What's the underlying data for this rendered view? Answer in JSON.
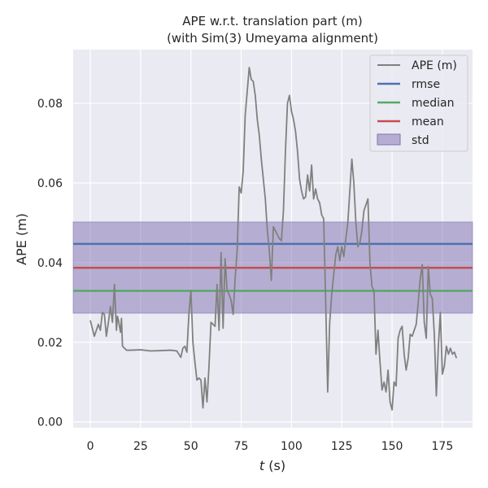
{
  "chart_data": {
    "type": "line",
    "title": [
      "APE w.r.t. translation part (m)",
      "(with Sim(3) Umeyama alignment)"
    ],
    "xlabel_var": "t",
    "xlabel_unit": " (s)",
    "ylabel": "APE (m)",
    "xlim": [
      -8.5,
      190
    ],
    "ylim": [
      -0.0015,
      0.0935
    ],
    "xticks": [
      0,
      25,
      50,
      75,
      100,
      125,
      150,
      175
    ],
    "xtick_labels": [
      "0",
      "25",
      "50",
      "75",
      "100",
      "125",
      "150",
      "175"
    ],
    "yticks": [
      0.0,
      0.02,
      0.04,
      0.06,
      0.08
    ],
    "ytick_labels": [
      "0.00",
      "0.02",
      "0.04",
      "0.06",
      "0.08"
    ],
    "grid": true,
    "legend_position": "top-right",
    "background_color": "#eaeaf2",
    "series": [
      {
        "name": "APE (m)",
        "color": "#808080",
        "x": [
          0,
          2,
          4,
          5,
          6,
          7,
          8,
          9,
          10,
          11,
          12,
          13,
          13.5,
          14,
          15,
          15.5,
          16,
          17,
          18,
          20,
          25,
          30,
          35,
          40,
          43,
          44,
          45,
          46,
          47,
          48,
          49,
          50,
          51,
          52,
          53,
          54,
          55,
          56,
          57,
          58,
          59,
          60,
          61,
          62,
          63,
          64,
          65,
          66,
          67,
          68,
          69,
          70,
          71,
          72,
          73,
          74,
          75,
          76,
          77,
          78,
          79,
          80,
          81,
          82,
          83,
          84,
          85,
          86,
          87,
          88,
          89,
          90,
          91,
          92,
          93,
          94,
          95,
          96,
          97,
          98,
          99,
          100,
          101,
          102,
          103,
          104,
          105,
          106,
          107,
          108,
          109,
          110,
          111,
          112,
          113,
          114,
          115,
          116,
          117,
          118,
          119,
          120,
          121,
          122,
          123,
          124,
          125,
          126,
          127,
          128,
          129,
          130,
          131,
          132,
          133,
          134,
          135,
          136,
          137,
          138,
          139,
          140,
          141,
          142,
          143,
          144,
          145,
          146,
          147,
          148,
          149,
          150,
          151,
          152,
          153,
          154,
          155,
          156,
          157,
          158,
          159,
          160,
          161,
          162,
          163,
          164,
          165,
          166,
          167,
          168,
          169,
          170,
          171,
          172,
          173,
          174,
          175,
          176,
          177,
          178,
          179,
          180,
          181,
          182
        ],
        "y": [
          0.0255,
          0.0215,
          0.0245,
          0.023,
          0.0275,
          0.027,
          0.0215,
          0.025,
          0.029,
          0.025,
          0.0345,
          0.023,
          0.0265,
          0.0255,
          0.0225,
          0.026,
          0.019,
          0.0185,
          0.018,
          0.018,
          0.0181,
          0.0178,
          0.0179,
          0.018,
          0.0178,
          0.017,
          0.0162,
          0.0185,
          0.019,
          0.0175,
          0.027,
          0.033,
          0.02,
          0.015,
          0.0105,
          0.011,
          0.0105,
          0.0035,
          0.011,
          0.005,
          0.014,
          0.025,
          0.0245,
          0.024,
          0.0345,
          0.023,
          0.0425,
          0.0235,
          0.041,
          0.033,
          0.032,
          0.0305,
          0.027,
          0.036,
          0.043,
          0.059,
          0.0575,
          0.063,
          0.077,
          0.083,
          0.089,
          0.086,
          0.0855,
          0.082,
          0.076,
          0.072,
          0.066,
          0.061,
          0.056,
          0.048,
          0.043,
          0.0355,
          0.049,
          0.048,
          0.047,
          0.046,
          0.0455,
          0.053,
          0.068,
          0.08,
          0.082,
          0.078,
          0.076,
          0.073,
          0.068,
          0.061,
          0.058,
          0.056,
          0.0565,
          0.062,
          0.058,
          0.0645,
          0.056,
          0.0585,
          0.056,
          0.055,
          0.052,
          0.051,
          0.03,
          0.0075,
          0.025,
          0.032,
          0.037,
          0.042,
          0.044,
          0.0405,
          0.044,
          0.0415,
          0.046,
          0.05,
          0.058,
          0.066,
          0.06,
          0.05,
          0.044,
          0.045,
          0.048,
          0.053,
          0.0545,
          0.056,
          0.04,
          0.034,
          0.033,
          0.017,
          0.023,
          0.015,
          0.008,
          0.01,
          0.0075,
          0.013,
          0.005,
          0.003,
          0.01,
          0.009,
          0.021,
          0.023,
          0.024,
          0.017,
          0.013,
          0.016,
          0.022,
          0.0215,
          0.023,
          0.0245,
          0.03,
          0.036,
          0.0395,
          0.025,
          0.021,
          0.039,
          0.032,
          0.031,
          0.022,
          0.0065,
          0.019,
          0.0275,
          0.012,
          0.014,
          0.019,
          0.017,
          0.0185,
          0.017,
          0.0175,
          0.016
        ]
      },
      {
        "name": "rmse",
        "color": "#4c72b0",
        "value": 0.0447
      },
      {
        "name": "median",
        "color": "#55a868",
        "value": 0.0329
      },
      {
        "name": "mean",
        "color": "#c44e52",
        "value": 0.0387
      },
      {
        "name": "std",
        "color": "#8172b2",
        "range": [
          0.0273,
          0.0502
        ]
      }
    ]
  }
}
